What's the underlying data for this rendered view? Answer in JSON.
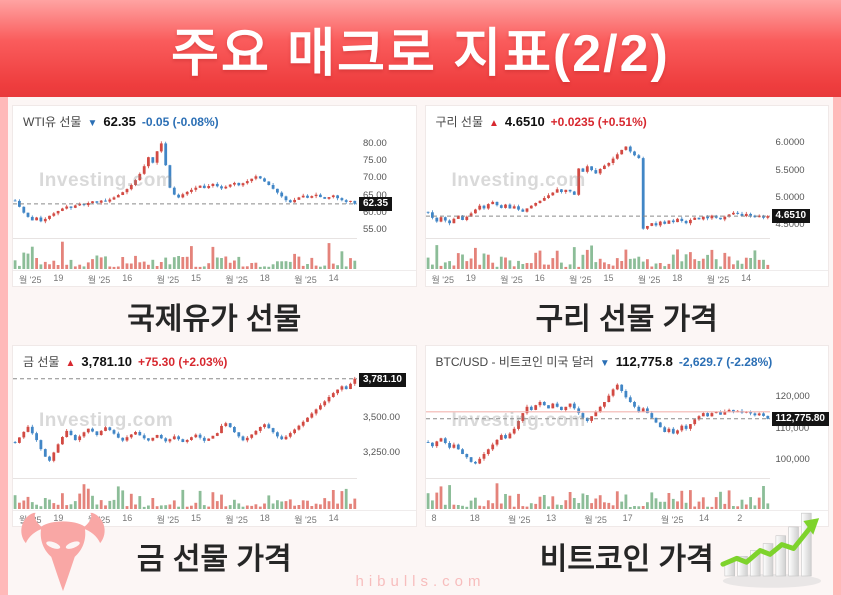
{
  "page": {
    "title": "주요 매크로 지표(2/2)",
    "footer": "hibulls.com"
  },
  "colors": {
    "up": "#d7282f",
    "down": "#2b6fb5",
    "candle_up": "#d24a43",
    "candle_down": "#4186c6",
    "vol_up": "#e4837b",
    "vol_down": "#8cbd98",
    "banner": "#f64c4c",
    "background_pink": "#ffb9b9"
  },
  "chart_data": [
    {
      "type": "candlestick",
      "instrument": "WTI유 선물",
      "arrow": "▼",
      "direction": "down",
      "last_label": "62.35",
      "change_label": "-0.05 (-0.08%)",
      "tag": "62.35",
      "last": 62.35,
      "caption": "국제유가 선물",
      "watermark": "Investing.com",
      "ylim": [
        52.5,
        82.5
      ],
      "yticks": [
        {
          "v": 80,
          "label": "80.00"
        },
        {
          "v": 75,
          "label": "75.00"
        },
        {
          "v": 70,
          "label": "70.00"
        },
        {
          "v": 65,
          "label": "65.00"
        },
        {
          "v": 60,
          "label": "60.00"
        },
        {
          "v": 55,
          "label": "55.00"
        }
      ],
      "xticks": [
        "월 '25",
        "19",
        "월 '25",
        "16",
        "월 '25",
        "15",
        "월 '25",
        "18",
        "월 '25",
        "14"
      ],
      "closes": [
        63.2,
        61.5,
        59.8,
        58.6,
        57.6,
        58.4,
        57.3,
        58.0,
        58.9,
        59.6,
        60.3,
        61.0,
        61.6,
        61.2,
        61.9,
        62.4,
        62.0,
        62.6,
        63.1,
        62.7,
        63.3,
        63.0,
        63.6,
        64.2,
        64.9,
        65.7,
        66.6,
        67.8,
        69.2,
        71.0,
        73.2,
        75.8,
        74.2,
        77.5,
        79.8,
        73.5,
        67.0,
        65.0,
        64.2,
        65.1,
        65.8,
        66.4,
        67.0,
        67.6,
        66.9,
        67.5,
        68.1,
        67.4,
        66.8,
        67.3,
        67.9,
        68.4,
        67.7,
        68.3,
        68.9,
        69.6,
        70.3,
        69.7,
        68.8,
        67.8,
        66.7,
        65.6,
        64.5,
        63.4,
        62.8,
        63.5,
        64.2,
        64.7,
        64.1,
        64.6,
        65.0,
        64.3,
        63.8,
        64.3,
        64.8,
        64.0,
        63.4,
        62.9,
        63.2,
        62.35
      ]
    },
    {
      "type": "candlestick",
      "instrument": "구리 선물",
      "arrow": "▲",
      "direction": "up",
      "last_label": "4.6510",
      "change_label": "+0.0235 (+0.51%)",
      "tag": "4.6510",
      "last": 4.651,
      "caption": "구리 선물 가격",
      "watermark": "Investing.com",
      "ylim": [
        4.25,
        6.15
      ],
      "yticks": [
        {
          "v": 6.0,
          "label": "6.0000"
        },
        {
          "v": 5.5,
          "label": "5.5000"
        },
        {
          "v": 5.0,
          "label": "5.0000"
        },
        {
          "v": 4.5,
          "label": "4.5000"
        }
      ],
      "xticks": [
        "월 '25",
        "19",
        "월 '25",
        "16",
        "월 '25",
        "15",
        "월 '25",
        "18",
        "월 '25",
        "14"
      ],
      "closes": [
        4.72,
        4.62,
        4.55,
        4.63,
        4.57,
        4.52,
        4.6,
        4.66,
        4.58,
        4.64,
        4.7,
        4.77,
        4.84,
        4.79,
        4.87,
        4.91,
        4.85,
        4.8,
        4.86,
        4.79,
        4.83,
        4.77,
        4.73,
        4.79,
        4.84,
        4.89,
        4.93,
        4.98,
        5.03,
        5.08,
        5.14,
        5.09,
        5.13,
        5.1,
        5.04,
        5.52,
        5.46,
        5.56,
        5.49,
        5.43,
        5.51,
        5.57,
        5.62,
        5.7,
        5.78,
        5.86,
        5.92,
        5.83,
        5.76,
        5.71,
        4.42,
        4.47,
        4.52,
        4.48,
        4.55,
        4.51,
        4.57,
        4.54,
        4.6,
        4.56,
        4.52,
        4.58,
        4.62,
        4.59,
        4.64,
        4.61,
        4.66,
        4.62,
        4.59,
        4.64,
        4.68,
        4.71,
        4.69,
        4.65,
        4.69,
        4.66,
        4.63,
        4.66,
        4.62,
        4.651
      ]
    },
    {
      "type": "candlestick",
      "instrument": "금 선물",
      "arrow": "▲",
      "direction": "up",
      "last_label": "3,781.10",
      "change_label": "+75.30 (+2.03%)",
      "tag": "3,781.10",
      "last": 3781.1,
      "caption": "금 선물 가격",
      "watermark": "Investing.com",
      "ylim": [
        3060,
        3815
      ],
      "yticks": [
        {
          "v": 3500,
          "label": "3,500.00"
        },
        {
          "v": 3250,
          "label": "3,250.00"
        }
      ],
      "xticks": [
        "월 '25",
        "19",
        "월 '25",
        "16",
        "월 '25",
        "15",
        "월 '25",
        "18",
        "월 '25",
        "14"
      ],
      "closes": [
        3315,
        3355,
        3395,
        3432,
        3385,
        3335,
        3270,
        3215,
        3185,
        3245,
        3305,
        3358,
        3402,
        3372,
        3335,
        3362,
        3392,
        3418,
        3398,
        3372,
        3402,
        3428,
        3408,
        3382,
        3352,
        3332,
        3356,
        3376,
        3394,
        3370,
        3348,
        3332,
        3352,
        3372,
        3348,
        3326,
        3342,
        3362,
        3342,
        3322,
        3336,
        3356,
        3374,
        3352,
        3330,
        3346,
        3366,
        3386,
        3438,
        3458,
        3430,
        3392,
        3362,
        3334,
        3352,
        3376,
        3402,
        3430,
        3450,
        3422,
        3392,
        3362,
        3342,
        3360,
        3386,
        3412,
        3440,
        3468,
        3498,
        3528,
        3558,
        3588,
        3616,
        3648,
        3676,
        3702,
        3726,
        3706,
        3744,
        3781.1
      ]
    },
    {
      "type": "candlestick",
      "instrument": "BTC/USD - 비트코인 미국 달러",
      "arrow": "▼",
      "direction": "down",
      "last_label": "112,775.8",
      "change_label": "-2,629.7 (-2.28%)",
      "tag": "112,775.80",
      "last": 112775.8,
      "caption": "비트코인 가격",
      "watermark": "Investing.com",
      "ylim": [
        94000,
        127000
      ],
      "hline": {
        "v": 115000,
        "color": "#f3b5b1"
      },
      "yticks": [
        {
          "v": 120000,
          "label": "120,000"
        },
        {
          "v": 110000,
          "label": "110,000"
        },
        {
          "v": 100000,
          "label": "100,000"
        }
      ],
      "xticks": [
        "8",
        "18",
        "월 '25",
        "13",
        "월 '25",
        "17",
        "월 '25",
        "14",
        "2"
      ],
      "closes": [
        105200,
        104100,
        105600,
        106600,
        105100,
        103600,
        104600,
        103100,
        101600,
        100600,
        99100,
        98600,
        100100,
        101600,
        103100,
        104600,
        106100,
        107600,
        106600,
        108100,
        109600,
        112100,
        114600,
        116600,
        115600,
        117100,
        118100,
        117100,
        116100,
        117600,
        116600,
        115600,
        116600,
        117600,
        116100,
        114600,
        113100,
        112100,
        113600,
        115100,
        116600,
        118100,
        120100,
        122100,
        123600,
        121600,
        119600,
        118100,
        116600,
        115100,
        116100,
        114600,
        113100,
        111600,
        110100,
        108600,
        109600,
        108100,
        109100,
        110600,
        109600,
        111100,
        112600,
        113600,
        114600,
        113600,
        114600,
        115100,
        114100,
        115100,
        115600,
        114900,
        115300,
        114700,
        115100,
        114500,
        113900,
        114500,
        113700,
        112775.8
      ]
    }
  ]
}
